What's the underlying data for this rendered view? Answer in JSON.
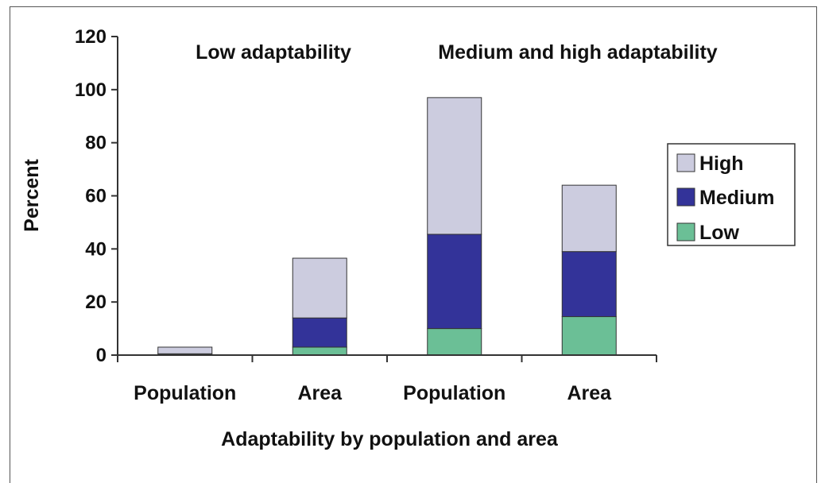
{
  "chart_data": {
    "type": "bar",
    "stacked": true,
    "group_labels": [
      "Low adaptability",
      "Medium and high adaptability"
    ],
    "categories": [
      "Population",
      "Area",
      "Population",
      "Area"
    ],
    "xlabel": "Adaptability by population and area",
    "ylabel": "Percent",
    "ylim": [
      0,
      120
    ],
    "yticks": [
      "0",
      "20",
      "40",
      "60",
      "80",
      "100",
      "120"
    ],
    "grid": false,
    "legend_position": "right",
    "series": [
      {
        "name": "Low",
        "color": "#6bbf96",
        "values": [
          0.5,
          3,
          10,
          14.5
        ]
      },
      {
        "name": "Medium",
        "color": "#333399",
        "values": [
          0,
          11,
          35.5,
          24.5
        ]
      },
      {
        "name": "High",
        "color": "#ccccdf",
        "values": [
          2.5,
          22.5,
          51.5,
          25
        ]
      }
    ],
    "legend_order": [
      "High",
      "Medium",
      "Low"
    ]
  }
}
